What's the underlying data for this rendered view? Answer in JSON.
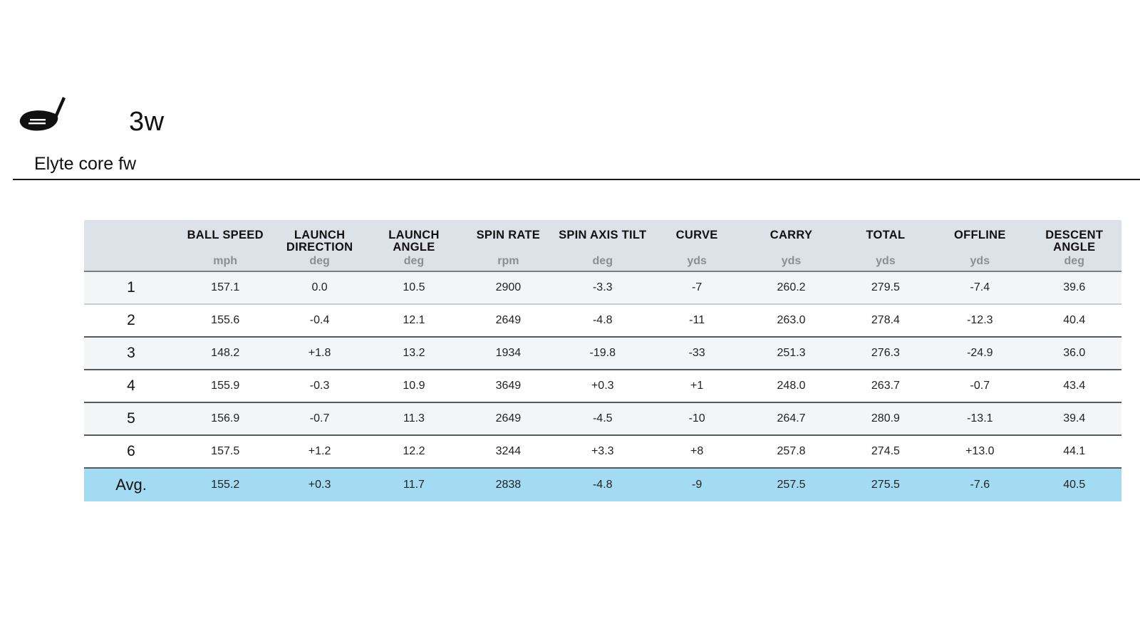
{
  "header": {
    "club_icon": "fairway-wood-club-icon",
    "club_code": "3w",
    "club_model": "Elyte core fw"
  },
  "table": {
    "columns": [
      {
        "name": "BALL SPEED",
        "unit": "mph"
      },
      {
        "name": "LAUNCH DIRECTION",
        "unit": "deg"
      },
      {
        "name": "LAUNCH ANGLE",
        "unit": "deg"
      },
      {
        "name": "SPIN RATE",
        "unit": "rpm"
      },
      {
        "name": "SPIN AXIS TILT",
        "unit": "deg"
      },
      {
        "name": "CURVE",
        "unit": "yds"
      },
      {
        "name": "CARRY",
        "unit": "yds"
      },
      {
        "name": "TOTAL",
        "unit": "yds"
      },
      {
        "name": "OFFLINE",
        "unit": "yds"
      },
      {
        "name": "DESCENT ANGLE",
        "unit": "deg"
      }
    ],
    "rows": [
      {
        "label": "1",
        "values": [
          "157.1",
          "0.0",
          "10.5",
          "2900",
          "-3.3",
          "-7",
          "260.2",
          "279.5",
          "-7.4",
          "39.6"
        ]
      },
      {
        "label": "2",
        "values": [
          "155.6",
          "-0.4",
          "12.1",
          "2649",
          "-4.8",
          "-11",
          "263.0",
          "278.4",
          "-12.3",
          "40.4"
        ]
      },
      {
        "label": "3",
        "values": [
          "148.2",
          "+1.8",
          "13.2",
          "1934",
          "-19.8",
          "-33",
          "251.3",
          "276.3",
          "-24.9",
          "36.0"
        ]
      },
      {
        "label": "4",
        "values": [
          "155.9",
          "-0.3",
          "10.9",
          "3649",
          "+0.3",
          "+1",
          "248.0",
          "263.7",
          "-0.7",
          "43.4"
        ]
      },
      {
        "label": "5",
        "values": [
          "156.9",
          "-0.7",
          "11.3",
          "2649",
          "-4.5",
          "-10",
          "264.7",
          "280.9",
          "-13.1",
          "39.4"
        ]
      },
      {
        "label": "6",
        "values": [
          "157.5",
          "+1.2",
          "12.2",
          "3244",
          "+3.3",
          "+8",
          "257.8",
          "274.5",
          "+13.0",
          "44.1"
        ]
      }
    ],
    "average": {
      "label": "Avg.",
      "values": [
        "155.2",
        "+0.3",
        "11.7",
        "2838",
        "-4.8",
        "-9",
        "257.5",
        "275.5",
        "-7.6",
        "40.5"
      ]
    }
  },
  "colors": {
    "header_bg": "#dde1e8",
    "average_row_bg": "#a3dcf2",
    "unit_text": "#8a8f96"
  }
}
